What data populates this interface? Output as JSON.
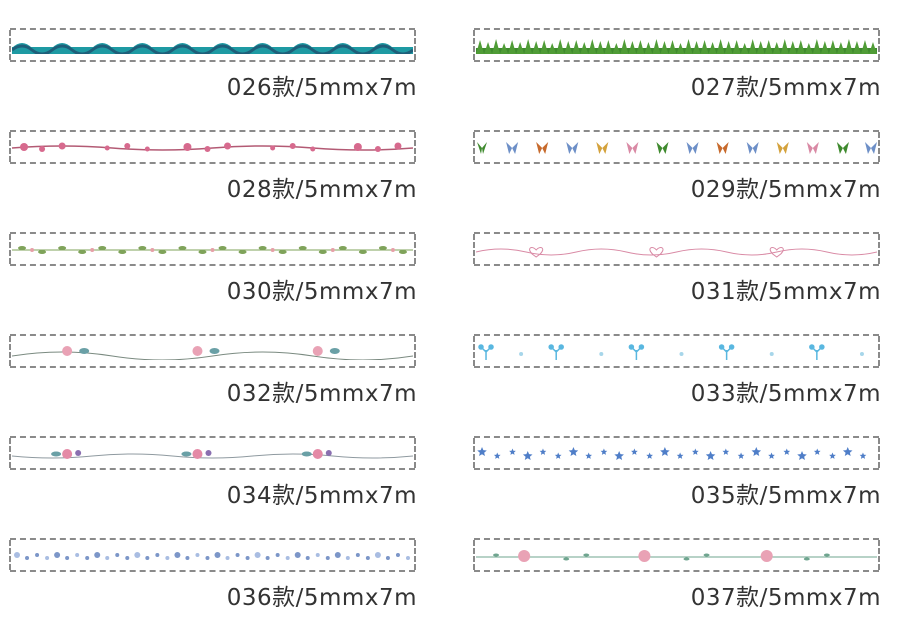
{
  "items": [
    {
      "label": "026款/5mmx7m",
      "pattern": "waves"
    },
    {
      "label": "027款/5mmx7m",
      "pattern": "grass"
    },
    {
      "label": "028款/5mmx7m",
      "pattern": "blossom-branch"
    },
    {
      "label": "029款/5mmx7m",
      "pattern": "butterflies"
    },
    {
      "label": "030款/5mmx7m",
      "pattern": "leaf-garland"
    },
    {
      "label": "031款/5mmx7m",
      "pattern": "heart-swirls"
    },
    {
      "label": "032款/5mmx7m",
      "pattern": "rose-vine"
    },
    {
      "label": "033款/5mmx7m",
      "pattern": "blue-sprigs"
    },
    {
      "label": "034款/5mmx7m",
      "pattern": "rose-bouquet-vine"
    },
    {
      "label": "035款/5mmx7m",
      "pattern": "blue-stars"
    },
    {
      "label": "036款/5mmx7m",
      "pattern": "blue-floral-border"
    },
    {
      "label": "037款/5mmx7m",
      "pattern": "pink-rose-vine"
    }
  ],
  "colors": {
    "dashes": "#8a8a8a",
    "label_text": "#333333",
    "wave_teal": "#1e9aa3",
    "wave_dark": "#1f5f7a",
    "grass": "#3f8a2e",
    "blossom_pink": "#d76a8e",
    "butterfly_blue": "#6d8fc7",
    "butterfly_orange": "#c76a2c",
    "leaf_green": "#7fa35a",
    "heart_pink": "#d98aa5",
    "sprig_blue": "#59b7e0",
    "star_blue": "#4f7ec8",
    "floral_blue": "#7c96c8",
    "rose_pink": "#e9a2b5"
  }
}
